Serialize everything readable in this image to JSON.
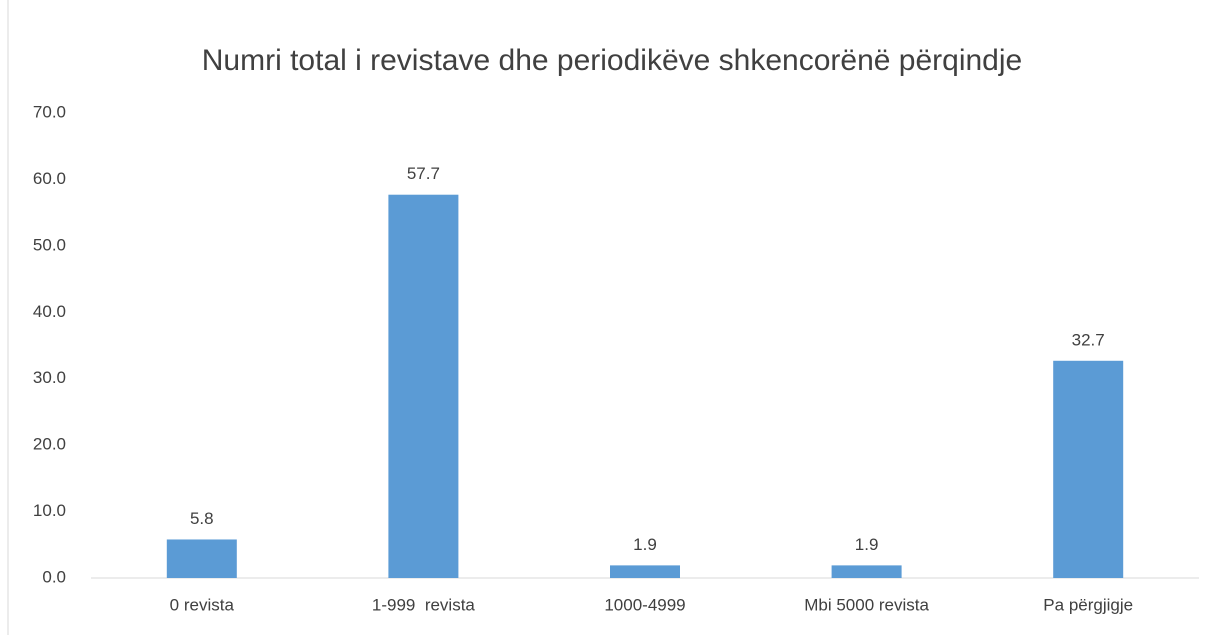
{
  "chart_data": {
    "type": "bar",
    "title": "Numri total i revistave dhe periodikëve shkencorënë përqindje",
    "categories": [
      "0 revista",
      "1-999  revista",
      "1000-4999",
      "Mbi 5000 revista",
      "Pa përgjigje"
    ],
    "values": [
      5.8,
      57.7,
      1.9,
      1.9,
      32.7
    ],
    "color": "#5b9bd5",
    "ylim": [
      0,
      70
    ],
    "yticks": [
      {
        "value": 0,
        "label": "0.0"
      },
      {
        "value": 10,
        "label": "10.0"
      },
      {
        "value": 20,
        "label": "20.0"
      },
      {
        "value": 30,
        "label": "30.0"
      },
      {
        "value": 40,
        "label": "40.0"
      },
      {
        "value": 50,
        "label": "50.0"
      },
      {
        "value": 60,
        "label": "60.0"
      },
      {
        "value": 70,
        "label": "70.0"
      }
    ],
    "grid": false
  }
}
